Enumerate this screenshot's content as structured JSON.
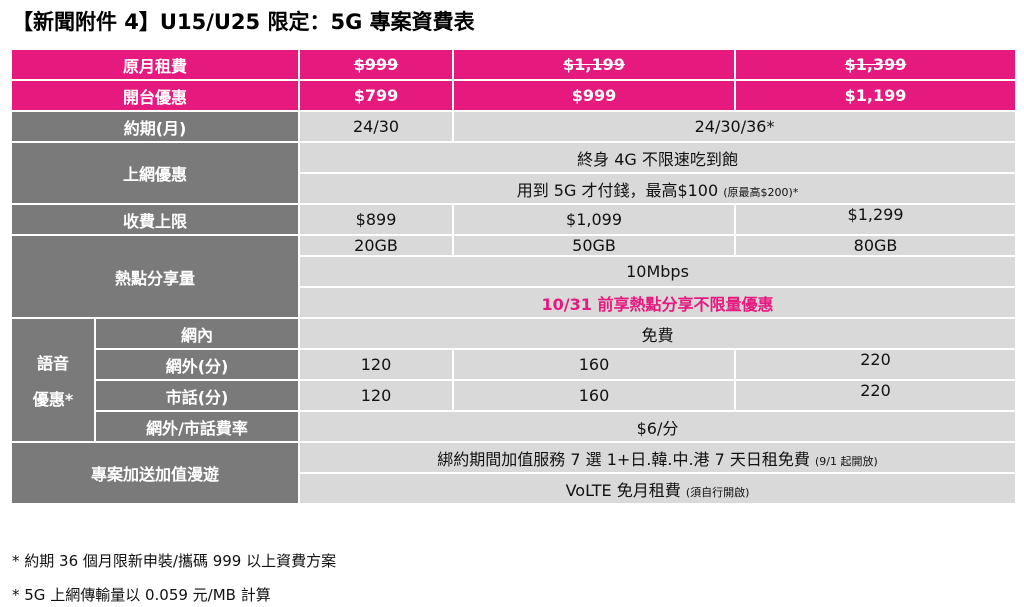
{
  "title": "【新聞附件 4】U15/U25 限定：5G 專案資費表",
  "rows": {
    "original_fee": {
      "label": "原月租費",
      "v1": "$999",
      "v2": "$1,199",
      "v3": "$1,399"
    },
    "launch_offer": {
      "label": "開台優惠",
      "v1": "$799",
      "v2": "$999",
      "v3": "$1,199"
    },
    "contract": {
      "label": "約期(月)",
      "v1": "24/30",
      "v23": "24/30/36*"
    },
    "data": {
      "label": "上網優惠",
      "line1": "終身 4G 不限速吃到飽",
      "line2_main": "用到 5G 才付錢，最高$100",
      "line2_note": "(原最高$200)*"
    },
    "cap": {
      "label": "收費上限",
      "v1": "$899",
      "v2": "$1,099",
      "v3": "$1,299"
    },
    "hotspot": {
      "label": "熱點分享量",
      "v1": "20GB",
      "v2": "50GB",
      "v3": "80GB",
      "speed": "10Mbps",
      "promo": "10/31 前享熱點分享不限量優惠"
    },
    "voice": {
      "group_line1": "語音",
      "group_line2": "優惠*",
      "onnet": {
        "label": "網內",
        "value": "免費"
      },
      "offnet": {
        "label": "網外(分)",
        "v1": "120",
        "v2": "160",
        "v3": "220"
      },
      "landline": {
        "label": "市話(分)",
        "v1": "120",
        "v2": "160",
        "v3": "220"
      },
      "rate": {
        "label": "網外/市話費率",
        "value": "$6/分"
      }
    },
    "addon": {
      "label": "專案加送加值漫遊",
      "line1_main": "綁約期間加值服務 7 選 1+日.韓.中.港 7 天日租免費",
      "line1_note": "(9/1 起開放)",
      "line2_main": "VoLTE 免月租費",
      "line2_note": "(須自行開啟)"
    }
  },
  "notes": [
    "*  約期 36 個月限新申裝/攜碼 999 以上資費方案",
    "* 5G 上網傳輸量以 0.059 元/MB 計算"
  ],
  "colors": {
    "header_pink": "#e6197e",
    "label_gray": "#7a7a7a",
    "value_gray": "#d9d9d9"
  }
}
